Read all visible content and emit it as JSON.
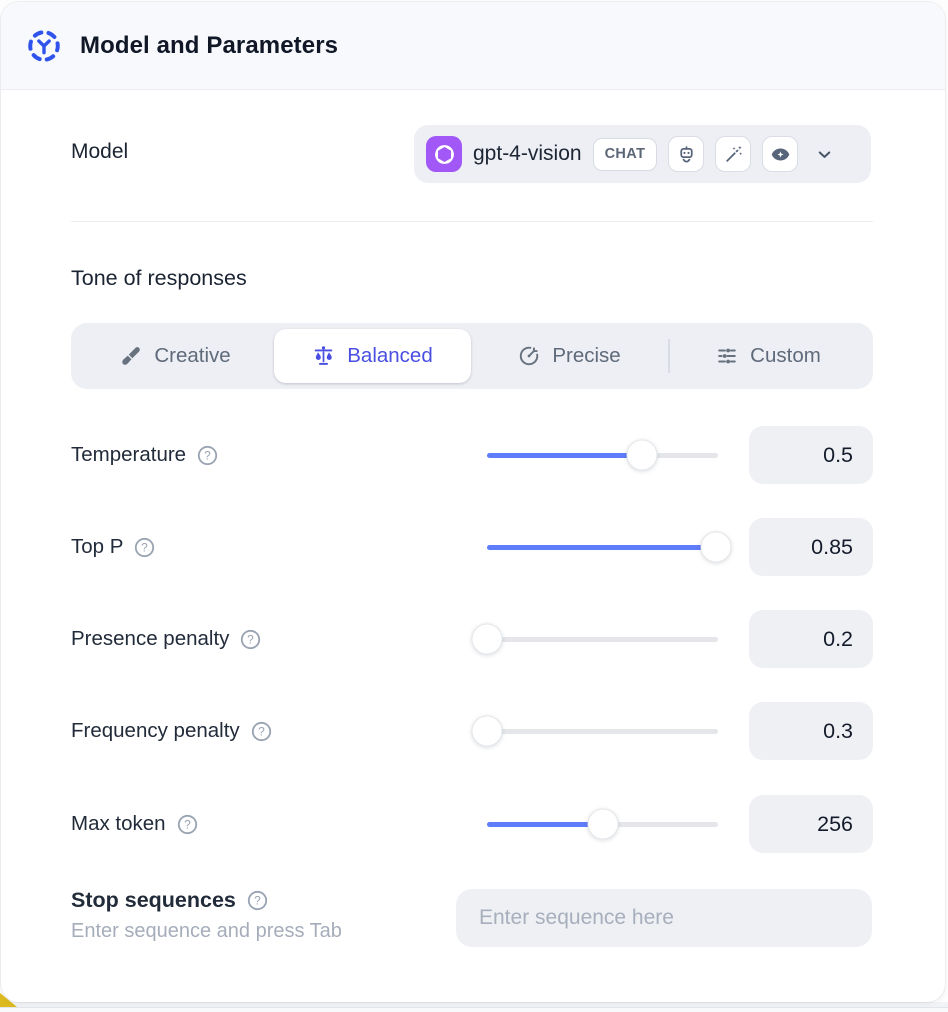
{
  "header": {
    "title": "Model and Parameters",
    "icon": "model-hub-icon"
  },
  "model_row": {
    "label": "Model",
    "selected_model": "gpt-4-vision",
    "type_badge": "CHAT",
    "provider_icon": "openai-logo",
    "capability_icons": [
      "robot-icon",
      "magic-wand-icon",
      "vision-eye-icon"
    ]
  },
  "tone": {
    "heading": "Tone of responses",
    "tabs": [
      {
        "label": "Creative",
        "icon": "paintbrush-icon",
        "selected": false
      },
      {
        "label": "Balanced",
        "icon": "balance-scale-icon",
        "selected": true
      },
      {
        "label": "Precise",
        "icon": "target-icon",
        "selected": false
      },
      {
        "label": "Custom",
        "icon": "sliders-icon",
        "selected": false
      }
    ]
  },
  "parameters": [
    {
      "label": "Temperature",
      "value": "0.5",
      "fill_percent": 67
    },
    {
      "label": "Top P",
      "value": "0.85",
      "fill_percent": 99
    },
    {
      "label": "Presence penalty",
      "value": "0.2",
      "fill_percent": 0
    },
    {
      "label": "Frequency penalty",
      "value": "0.3",
      "fill_percent": 0
    },
    {
      "label": "Max token",
      "value": "256",
      "fill_percent": 50
    }
  ],
  "stop_sequences": {
    "label": "Stop sequences",
    "hint": "Enter sequence and press Tab",
    "placeholder": "Enter sequence here"
  },
  "colors": {
    "accent_indigo": "#4a4fe2",
    "slider_blue": "#5f7cfa",
    "header_icon_blue": "#2f54eb",
    "provider_purple": "#a158f6",
    "corner_yellow": "#dcba1e",
    "panel_gray": "#edeff4"
  }
}
